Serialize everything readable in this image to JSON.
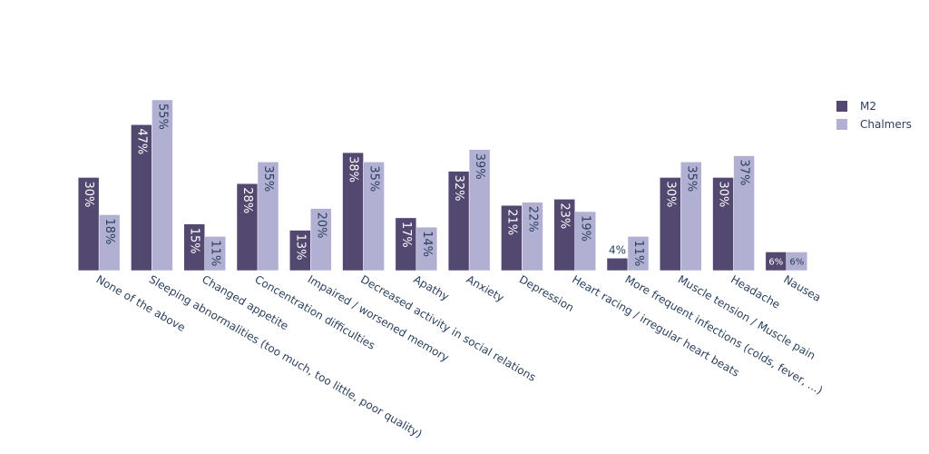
{
  "chart_data": {
    "type": "bar",
    "categories": [
      "None of the above",
      "Sleeping abnormalities (too much, too little, poor quality)",
      "Changed appetite",
      "Concentration difficulties",
      "Impaired / worsened memory",
      "Decreased  activity in social relations",
      "Apathy",
      "Anxiety",
      "Depression",
      "Heart racing / irregular heart beats",
      "More frequent infections (colds, fever, ...)",
      "Muscle tension / Muscle pain",
      "Headache",
      "Nausea"
    ],
    "series": [
      {
        "name": "M2",
        "color": "#524870",
        "values": [
          30,
          47,
          15,
          28,
          13,
          38,
          17,
          32,
          21,
          23,
          4,
          30,
          30,
          6
        ],
        "labels": [
          "30%",
          "47%",
          "15%",
          "28%",
          "13%",
          "38%",
          "17%",
          "32%",
          "21%",
          "23%",
          "4%",
          "30%",
          "30%",
          "6%"
        ]
      },
      {
        "name": "Chalmers",
        "color": "#b1afd2",
        "values": [
          18,
          55,
          11,
          35,
          20,
          35,
          14,
          39,
          22,
          19,
          11,
          35,
          37,
          6
        ],
        "labels": [
          "18%",
          "55%",
          "11%",
          "35%",
          "20%",
          "35%",
          "14%",
          "39%",
          "22%",
          "19%",
          "11%",
          "35%",
          "37%",
          "6%"
        ]
      }
    ],
    "ylim": [
      0,
      55
    ],
    "grid": false,
    "legend": "top-right"
  }
}
